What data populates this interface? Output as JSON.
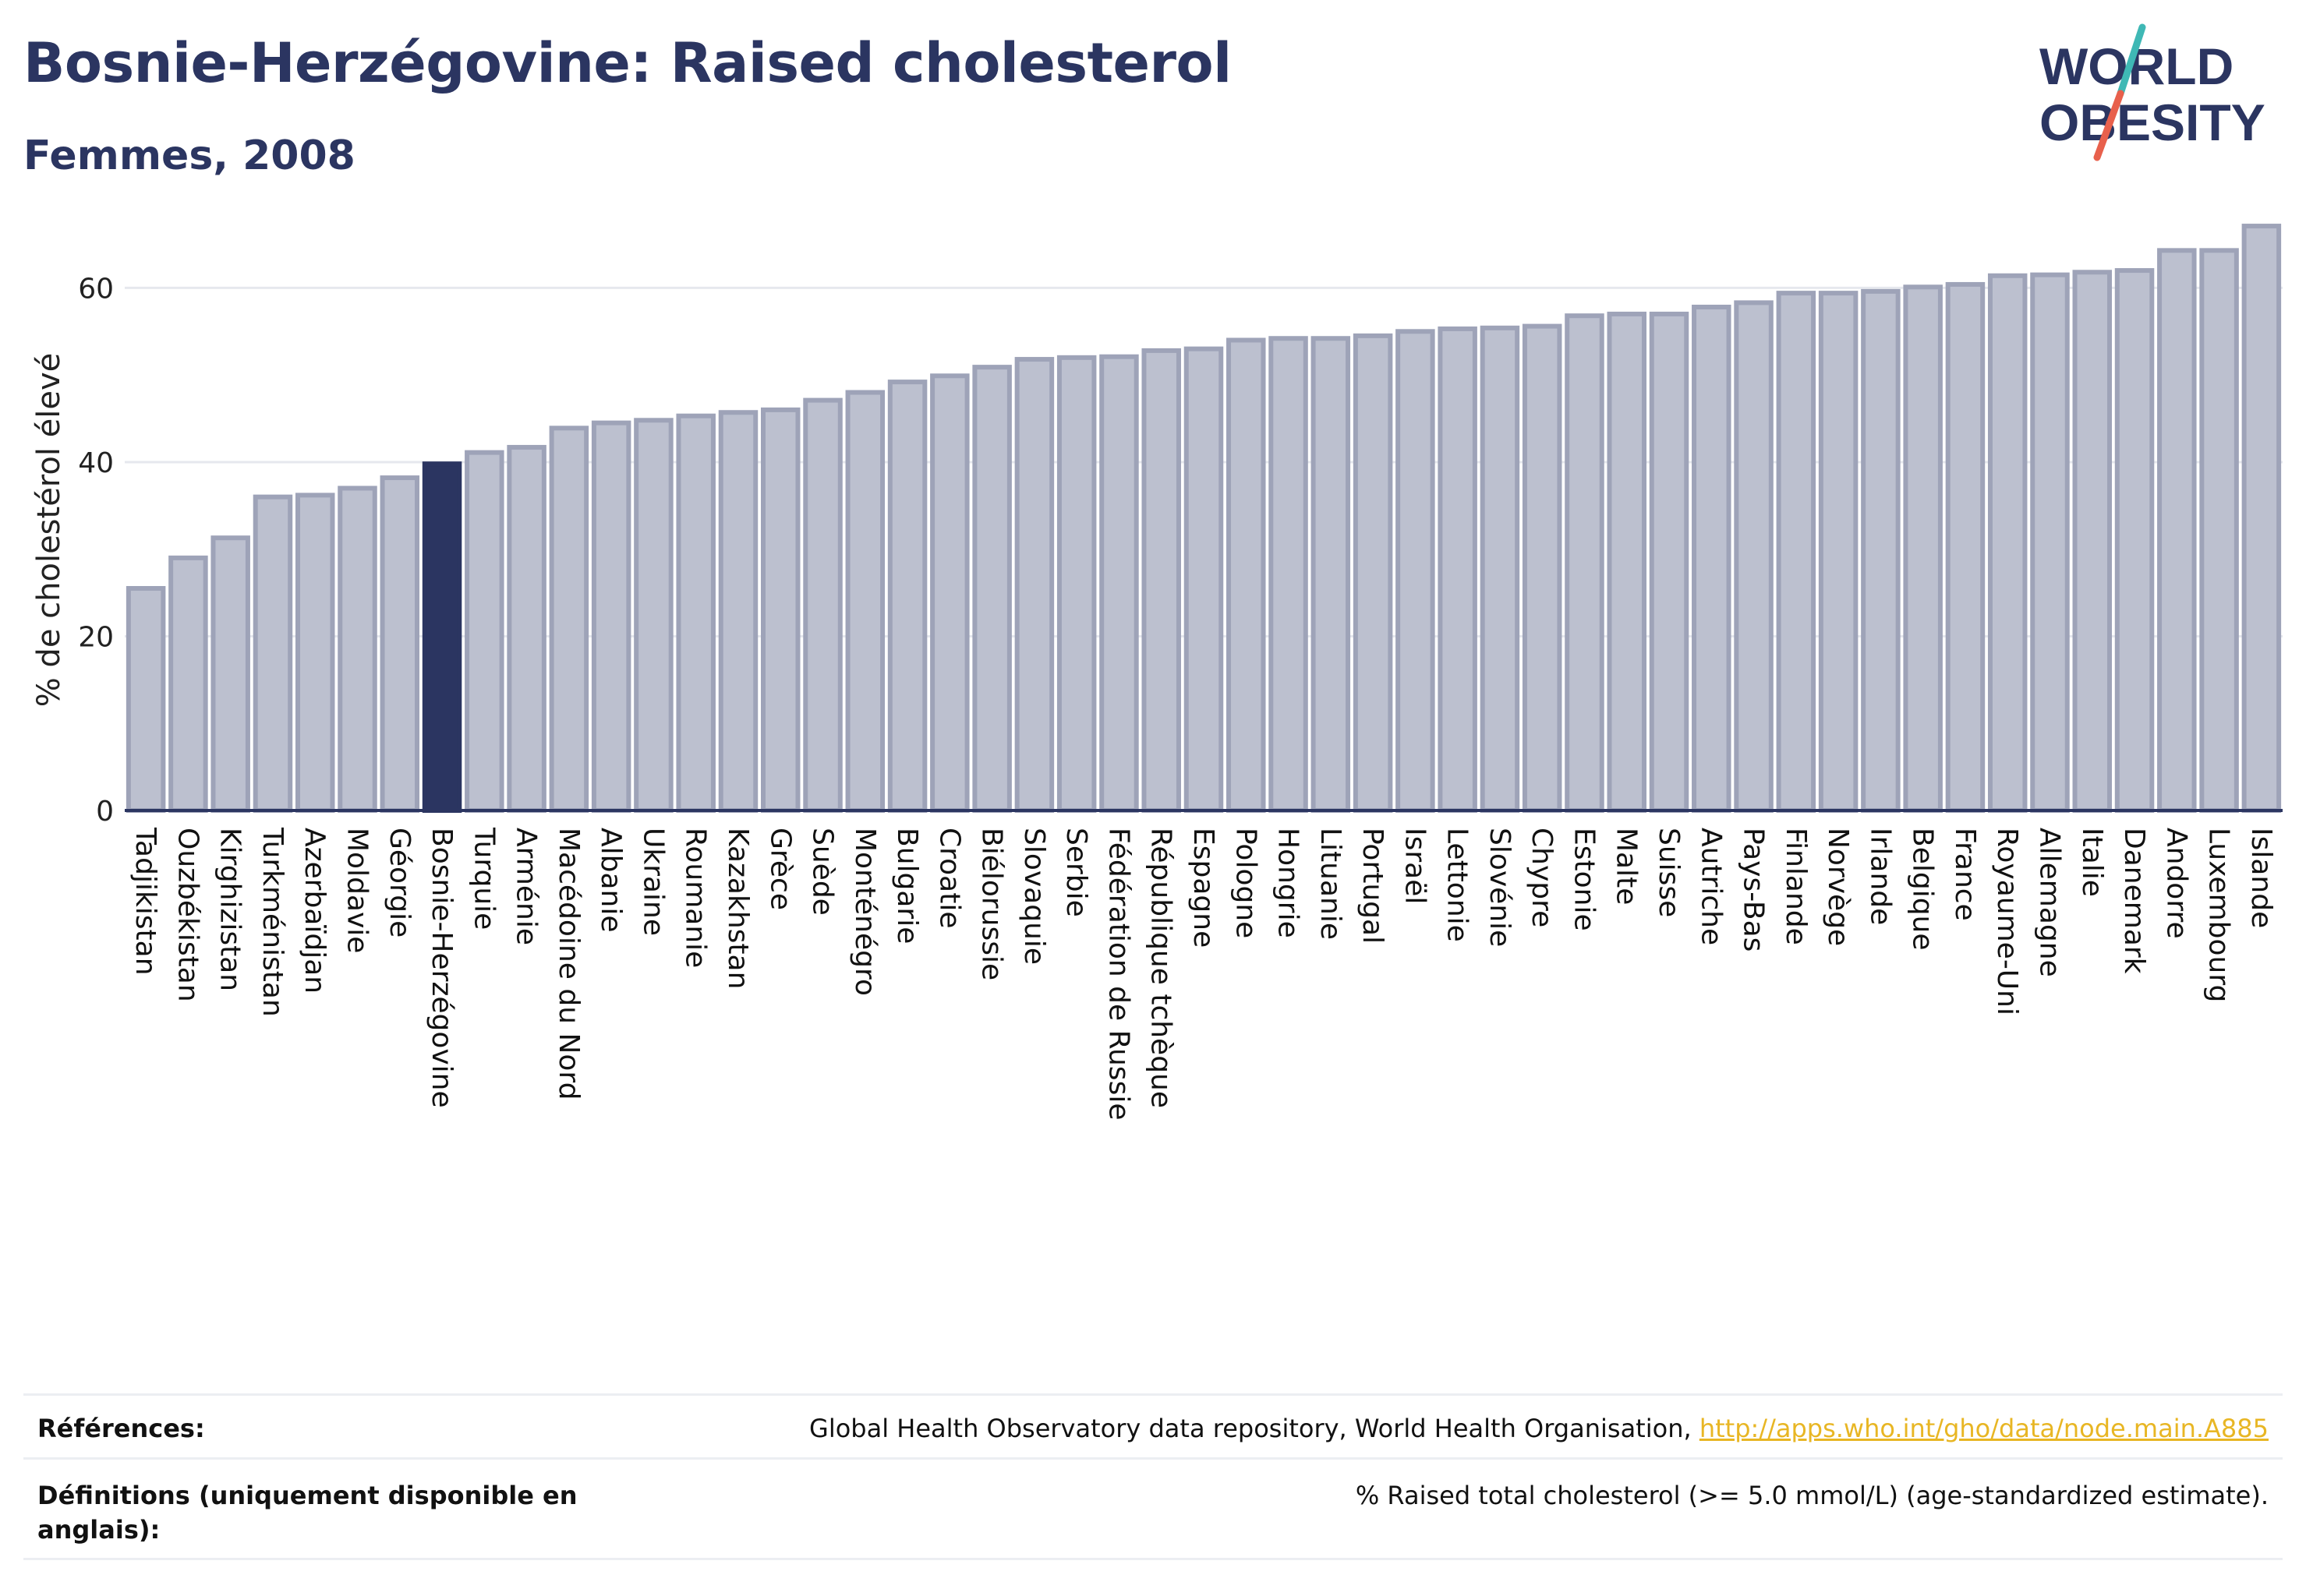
{
  "header": {
    "title": "Bosnie-Herzégovine: Raised cholesterol",
    "subtitle": "Femmes, 2008",
    "logo_text_line1": "WORLD",
    "logo_text_line2": "OBESITY"
  },
  "colors": {
    "highlight": "#2b3561",
    "bar_fill": "#bcc0cf",
    "bar_stroke": "#9ea3b8",
    "logo_teal": "#3fb8b5",
    "logo_coral": "#e8604c",
    "link": "#e8b624"
  },
  "chart_data": {
    "type": "bar",
    "ylabel": "% de cholestérol élevé",
    "ylim": [
      0,
      68
    ],
    "yticks": [
      0,
      20,
      40,
      60
    ],
    "grid": true,
    "highlight_category": "Bosnie-Herzégovine",
    "categories": [
      "Tadjikistan",
      "Ouzbékistan",
      "Kirghizistan",
      "Turkménistan",
      "Azerbaïdjan",
      "Moldavie",
      "Géorgie",
      "Bosnie-Herzégovine",
      "Turquie",
      "Arménie",
      "Macédoine du Nord",
      "Albanie",
      "Ukraine",
      "Roumanie",
      "Kazakhstan",
      "Grèce",
      "Suède",
      "Monténégro",
      "Bulgarie",
      "Croatie",
      "Biélorussie",
      "Slovaquie",
      "Serbie",
      "Fédération de Russie",
      "République tchèque",
      "Espagne",
      "Pologne",
      "Hongrie",
      "Lituanie",
      "Portugal",
      "Israël",
      "Lettonie",
      "Slovénie",
      "Chypre",
      "Estonie",
      "Malte",
      "Suisse",
      "Autriche",
      "Pays-Bas",
      "Finlande",
      "Norvège",
      "Irlande",
      "Belgique",
      "France",
      "Royaume-Uni",
      "Allemagne",
      "Italie",
      "Danemark",
      "Andorre",
      "Luxembourg",
      "Islande"
    ],
    "values": [
      25.5,
      29.0,
      31.3,
      36.0,
      36.2,
      37.0,
      38.2,
      39.8,
      41.1,
      41.7,
      43.9,
      44.5,
      44.8,
      45.3,
      45.7,
      46.0,
      47.1,
      48.0,
      49.2,
      49.9,
      50.9,
      51.8,
      52.0,
      52.1,
      52.8,
      53.0,
      54.0,
      54.2,
      54.2,
      54.5,
      55.0,
      55.3,
      55.4,
      55.6,
      56.8,
      57.0,
      57.0,
      57.8,
      58.3,
      59.4,
      59.4,
      59.6,
      60.1,
      60.4,
      61.4,
      61.5,
      61.8,
      62.0,
      64.3,
      64.3,
      67.1
    ]
  },
  "footer": {
    "references_label": "Références:",
    "references_text": "Global Health Observatory data repository, World Health Organisation, ",
    "references_link": "http://apps.who.int/gho/data/node.main.A885",
    "definitions_label": "Définitions (uniquement disponible en anglais):",
    "definitions_text": "% Raised total cholesterol (>= 5.0 mmol/L) (age-standardized estimate)."
  }
}
